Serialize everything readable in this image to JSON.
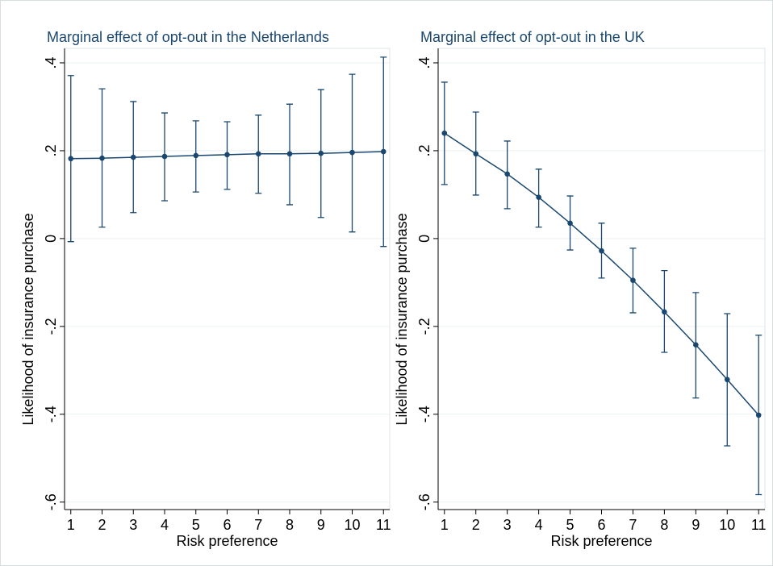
{
  "chart_data": [
    {
      "type": "line",
      "title": "Marginal effect of opt-out in the Netherlands",
      "xlabel": "Risk preference",
      "ylabel": "Likelihood of insurance purchase",
      "x": [
        1,
        2,
        3,
        4,
        5,
        6,
        7,
        8,
        9,
        10,
        11
      ],
      "values": [
        0.182,
        0.183,
        0.185,
        0.187,
        0.189,
        0.191,
        0.193,
        0.193,
        0.194,
        0.196,
        0.198
      ],
      "upper": [
        0.371,
        0.341,
        0.312,
        0.286,
        0.268,
        0.266,
        0.281,
        0.306,
        0.339,
        0.374,
        0.413
      ],
      "lower": [
        -0.007,
        0.026,
        0.059,
        0.086,
        0.106,
        0.112,
        0.103,
        0.077,
        0.048,
        0.015,
        -0.018
      ],
      "color": "#1a476f",
      "xlim": [
        0.8,
        11.2
      ],
      "xticks": [
        1,
        2,
        3,
        4,
        5,
        6,
        7,
        8,
        9,
        10,
        11
      ],
      "ylim": [
        -0.617,
        0.433
      ],
      "yticks": [
        {
          "value": -0.6,
          "label": "-.6"
        },
        {
          "value": -0.4,
          "label": "-.4"
        },
        {
          "value": -0.2,
          "label": "-.2"
        },
        0,
        {
          "value": 0.2,
          "label": ".2"
        },
        {
          "value": 0.4,
          "label": ".4"
        }
      ],
      "grid": true
    },
    {
      "type": "line",
      "title": "Marginal effect of opt-out in the UK",
      "xlabel": "Risk preference",
      "ylabel": "Likelihood of insurance purchase",
      "x": [
        1,
        2,
        3,
        4,
        5,
        6,
        7,
        8,
        9,
        10,
        11
      ],
      "values": [
        0.24,
        0.193,
        0.147,
        0.094,
        0.035,
        -0.028,
        -0.095,
        -0.167,
        -0.242,
        -0.321,
        -0.402
      ],
      "upper": [
        0.356,
        0.288,
        0.222,
        0.158,
        0.097,
        0.035,
        -0.022,
        -0.073,
        -0.123,
        -0.171,
        -0.22
      ],
      "lower": [
        0.123,
        0.099,
        0.068,
        0.026,
        -0.026,
        -0.09,
        -0.169,
        -0.259,
        -0.363,
        -0.472,
        -0.583
      ],
      "color": "#1a476f",
      "xlim": [
        0.8,
        11.2
      ],
      "xticks": [
        1,
        2,
        3,
        4,
        5,
        6,
        7,
        8,
        9,
        10,
        11
      ],
      "ylim": [
        -0.617,
        0.433
      ],
      "yticks": [
        {
          "value": -0.6,
          "label": "-.6"
        },
        {
          "value": -0.4,
          "label": "-.4"
        },
        {
          "value": -0.2,
          "label": "-.2"
        },
        0,
        {
          "value": 0.2,
          "label": ".2"
        },
        {
          "value": 0.4,
          "label": ".4"
        }
      ],
      "grid": true
    }
  ]
}
